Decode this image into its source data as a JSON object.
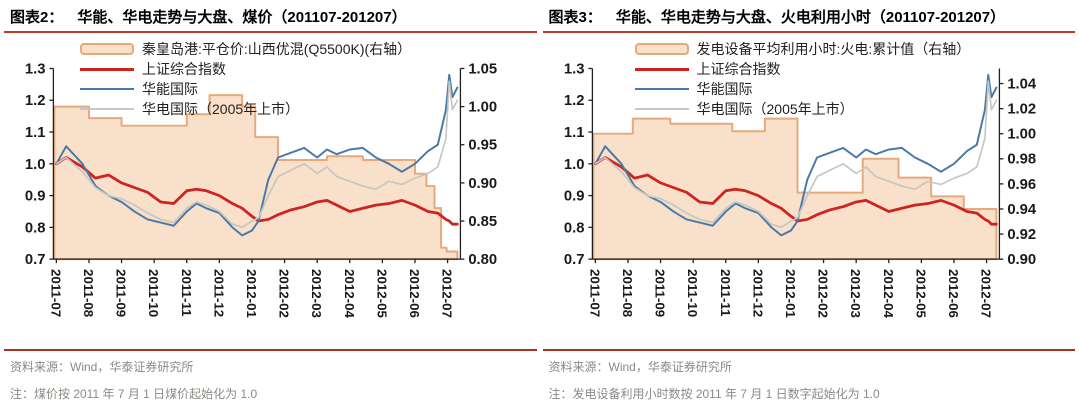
{
  "panels": [
    {
      "figure_label": "图表2：",
      "title": "华能、华电走势与大盘、煤价（201107-201207）",
      "legend_labels": [
        "秦皇岛港:平仓价:山西优混(Q5500K)(右轴）",
        "上证综合指数",
        "华能国际",
        "华电国际（2005年上市）"
      ],
      "source": "资料来源：Wind，华泰证券研究所",
      "note": "注：煤价按 2011 年 7 月 1 日煤价起始化为 1.0"
    },
    {
      "figure_label": "图表3：",
      "title": "华能、华电走势与大盘、火电利用小时（201107-201207）",
      "legend_labels": [
        "发电设备平均利用小时:火电:累计值（右轴）",
        "上证综合指数",
        "华能国际",
        "华电国际（2005年上市）"
      ],
      "source": "资料来源：Wind，华泰证券研究所",
      "note": "注：发电设备利用小时数按 2011 年 7 月 1 日数字起始化为 1.0"
    }
  ],
  "colors": {
    "area_fill": "#F8E0CA",
    "area_border": "#E5A97B",
    "sse_red": "#CE2420",
    "huaneng_blue": "#4A79A8",
    "huadian_gray": "#C6C6C2",
    "rule_red": "#BE3A26",
    "axis": "#1F1F1F",
    "footer_text": "#8A8A85"
  },
  "chart_data": [
    {
      "type": "line+area",
      "title": "华能、华电走势与大盘、煤价（201107-201207）",
      "x_ticks": [
        "2011-07",
        "2011-08",
        "2011-09",
        "2011-10",
        "2011-11",
        "2011-12",
        "2012-01",
        "2012-02",
        "2012-03",
        "2012-04",
        "2012-05",
        "2012-06",
        "2012-07"
      ],
      "x_end": 12.3,
      "grid": false,
      "legend_position": "top-left",
      "left_axis": {
        "min": 0.7,
        "max": 1.3,
        "ticks": [
          "1.3",
          "1.2",
          "1.1",
          "1.0",
          "0.9",
          "0.8",
          "0.7"
        ]
      },
      "right_axis": {
        "min": 0.8,
        "max": 1.05,
        "ticks": [
          "1.05",
          "1.00",
          "0.95",
          "0.90",
          "0.85",
          "0.80"
        ]
      },
      "area_series": {
        "name": "秦皇岛港:平仓价:山西优混(Q5500K)(右轴）",
        "axis": "right",
        "style": "step-after",
        "x": [
          0,
          1,
          2,
          4,
          4.7,
          5.7,
          6.1,
          6.8,
          8.3,
          9.4,
          11.0,
          11.35,
          11.6,
          11.8,
          11.97
        ],
        "values": [
          1.0,
          0.985,
          0.975,
          0.99,
          1.015,
          1.0,
          0.96,
          0.93,
          0.935,
          0.93,
          0.912,
          0.896,
          0.867,
          0.815,
          0.81
        ]
      },
      "line_series": [
        {
          "name": "上证综合指数",
          "axis": "left",
          "color_key": "sse_red",
          "x": [
            0,
            0.3,
            0.8,
            1.2,
            1.6,
            2,
            2.4,
            2.8,
            3.2,
            3.6,
            4,
            4.3,
            4.6,
            5,
            5.4,
            5.7,
            6,
            6.2,
            6.5,
            6.8,
            7.2,
            7.6,
            8,
            8.3,
            8.6,
            9,
            9.4,
            9.8,
            10.2,
            10.6,
            11,
            11.4,
            11.7,
            11.95,
            12.05,
            12.15,
            12.3
          ],
          "values": [
            1.0,
            1.02,
            0.99,
            0.955,
            0.965,
            0.94,
            0.925,
            0.91,
            0.88,
            0.875,
            0.915,
            0.92,
            0.915,
            0.9,
            0.875,
            0.86,
            0.835,
            0.82,
            0.825,
            0.84,
            0.855,
            0.865,
            0.88,
            0.885,
            0.87,
            0.85,
            0.86,
            0.87,
            0.875,
            0.885,
            0.87,
            0.85,
            0.845,
            0.825,
            0.82,
            0.81,
            0.81
          ]
        },
        {
          "name": "华能国际",
          "axis": "left",
          "color_key": "huaneng_blue",
          "x": [
            0,
            0.3,
            0.8,
            1.2,
            1.6,
            2,
            2.4,
            2.8,
            3.2,
            3.6,
            4,
            4.3,
            4.6,
            5,
            5.4,
            5.7,
            6,
            6.2,
            6.5,
            6.8,
            7.2,
            7.6,
            8,
            8.3,
            8.6,
            9,
            9.4,
            9.8,
            10.2,
            10.6,
            11,
            11.4,
            11.7,
            11.95,
            12.05,
            12.15,
            12.3
          ],
          "values": [
            1.0,
            1.055,
            1.0,
            0.93,
            0.9,
            0.88,
            0.85,
            0.825,
            0.815,
            0.805,
            0.85,
            0.875,
            0.86,
            0.845,
            0.8,
            0.775,
            0.79,
            0.82,
            0.95,
            1.02,
            1.035,
            1.05,
            1.02,
            1.045,
            1.03,
            1.045,
            1.05,
            1.02,
            1.0,
            0.975,
            1.0,
            1.04,
            1.06,
            1.17,
            1.28,
            1.21,
            1.24
          ]
        },
        {
          "name": "华电国际（2005年上市）",
          "axis": "left",
          "color_key": "huadian_gray",
          "x": [
            0,
            0.3,
            0.8,
            1.2,
            1.6,
            2,
            2.4,
            2.8,
            3.2,
            3.6,
            4,
            4.3,
            4.6,
            5,
            5.4,
            5.7,
            6,
            6.2,
            6.5,
            6.8,
            7.2,
            7.6,
            8,
            8.3,
            8.6,
            9,
            9.4,
            9.8,
            10.2,
            10.6,
            11,
            11.4,
            11.7,
            11.95,
            12.05,
            12.15,
            12.3
          ],
          "values": [
            1.0,
            1.02,
            0.975,
            0.925,
            0.9,
            0.89,
            0.87,
            0.845,
            0.825,
            0.815,
            0.86,
            0.88,
            0.87,
            0.85,
            0.81,
            0.8,
            0.82,
            0.83,
            0.9,
            0.96,
            0.98,
            1.0,
            0.97,
            0.99,
            0.96,
            0.945,
            0.93,
            0.92,
            0.945,
            0.935,
            0.955,
            0.97,
            0.99,
            1.08,
            1.26,
            1.17,
            1.2
          ]
        }
      ]
    },
    {
      "type": "line+area",
      "title": "华能、华电走势与大盘、火电利用小时（201107-201207）",
      "x_ticks": [
        "2011-07",
        "2011-08",
        "2011-09",
        "2011-10",
        "2011-11",
        "2011-12",
        "2012-01",
        "2012-02",
        "2012-03",
        "2012-04",
        "2012-05",
        "2012-06",
        "2012-07"
      ],
      "x_end": 12.3,
      "grid": false,
      "legend_position": "top-left",
      "left_axis": {
        "min": 0.7,
        "max": 1.3,
        "ticks": [
          "1.3",
          "1.2",
          "1.1",
          "1.0",
          "0.9",
          "0.8",
          "0.7"
        ]
      },
      "right_axis": {
        "min": 0.9,
        "max": 1.052,
        "ticks": [
          "1.04",
          "1.02",
          "1.00",
          "0.98",
          "0.96",
          "0.94",
          "0.92",
          "0.90"
        ]
      },
      "area_series": {
        "name": "发电设备平均利用小时:火电:累计值（右轴）",
        "axis": "right",
        "style": "step-after",
        "x": [
          0,
          1.15,
          2.3,
          4.2,
          5.2,
          6.2,
          8.2,
          9.3,
          10.3,
          11.3
        ],
        "values": [
          1.0,
          1.012,
          1.008,
          1.002,
          1.012,
          0.953,
          0.98,
          0.965,
          0.95,
          0.94
        ]
      },
      "line_series": [
        {
          "name": "上证综合指数",
          "axis": "left",
          "color_key": "sse_red",
          "x": [
            0,
            0.3,
            0.8,
            1.2,
            1.6,
            2,
            2.4,
            2.8,
            3.2,
            3.6,
            4,
            4.3,
            4.6,
            5,
            5.4,
            5.7,
            6,
            6.2,
            6.5,
            6.8,
            7.2,
            7.6,
            8,
            8.3,
            8.6,
            9,
            9.4,
            9.8,
            10.2,
            10.6,
            11,
            11.4,
            11.7,
            11.95,
            12.05,
            12.15,
            12.3
          ],
          "values": [
            1.0,
            1.02,
            0.99,
            0.955,
            0.965,
            0.94,
            0.925,
            0.91,
            0.88,
            0.875,
            0.915,
            0.92,
            0.915,
            0.9,
            0.875,
            0.86,
            0.835,
            0.82,
            0.825,
            0.84,
            0.855,
            0.865,
            0.88,
            0.885,
            0.87,
            0.85,
            0.86,
            0.87,
            0.875,
            0.885,
            0.87,
            0.85,
            0.845,
            0.825,
            0.82,
            0.81,
            0.81
          ]
        },
        {
          "name": "华能国际",
          "axis": "left",
          "color_key": "huaneng_blue",
          "x": [
            0,
            0.3,
            0.8,
            1.2,
            1.6,
            2,
            2.4,
            2.8,
            3.2,
            3.6,
            4,
            4.3,
            4.6,
            5,
            5.4,
            5.7,
            6,
            6.2,
            6.5,
            6.8,
            7.2,
            7.6,
            8,
            8.3,
            8.6,
            9,
            9.4,
            9.8,
            10.2,
            10.6,
            11,
            11.4,
            11.7,
            11.95,
            12.05,
            12.15,
            12.3
          ],
          "values": [
            1.0,
            1.055,
            1.0,
            0.93,
            0.9,
            0.88,
            0.85,
            0.825,
            0.815,
            0.805,
            0.85,
            0.875,
            0.86,
            0.845,
            0.8,
            0.775,
            0.79,
            0.82,
            0.95,
            1.02,
            1.035,
            1.05,
            1.02,
            1.045,
            1.03,
            1.045,
            1.05,
            1.02,
            1.0,
            0.975,
            1.0,
            1.04,
            1.06,
            1.17,
            1.28,
            1.21,
            1.24
          ]
        },
        {
          "name": "华电国际（2005年上市）",
          "axis": "left",
          "color_key": "huadian_gray",
          "x": [
            0,
            0.3,
            0.8,
            1.2,
            1.6,
            2,
            2.4,
            2.8,
            3.2,
            3.6,
            4,
            4.3,
            4.6,
            5,
            5.4,
            5.7,
            6,
            6.2,
            6.5,
            6.8,
            7.2,
            7.6,
            8,
            8.3,
            8.6,
            9,
            9.4,
            9.8,
            10.2,
            10.6,
            11,
            11.4,
            11.7,
            11.95,
            12.05,
            12.15,
            12.3
          ],
          "values": [
            1.0,
            1.02,
            0.975,
            0.925,
            0.9,
            0.89,
            0.87,
            0.845,
            0.825,
            0.815,
            0.86,
            0.88,
            0.87,
            0.85,
            0.81,
            0.8,
            0.82,
            0.83,
            0.9,
            0.96,
            0.98,
            1.0,
            0.97,
            0.99,
            0.96,
            0.945,
            0.93,
            0.92,
            0.945,
            0.935,
            0.955,
            0.97,
            0.99,
            1.08,
            1.26,
            1.17,
            1.2
          ]
        }
      ]
    }
  ]
}
